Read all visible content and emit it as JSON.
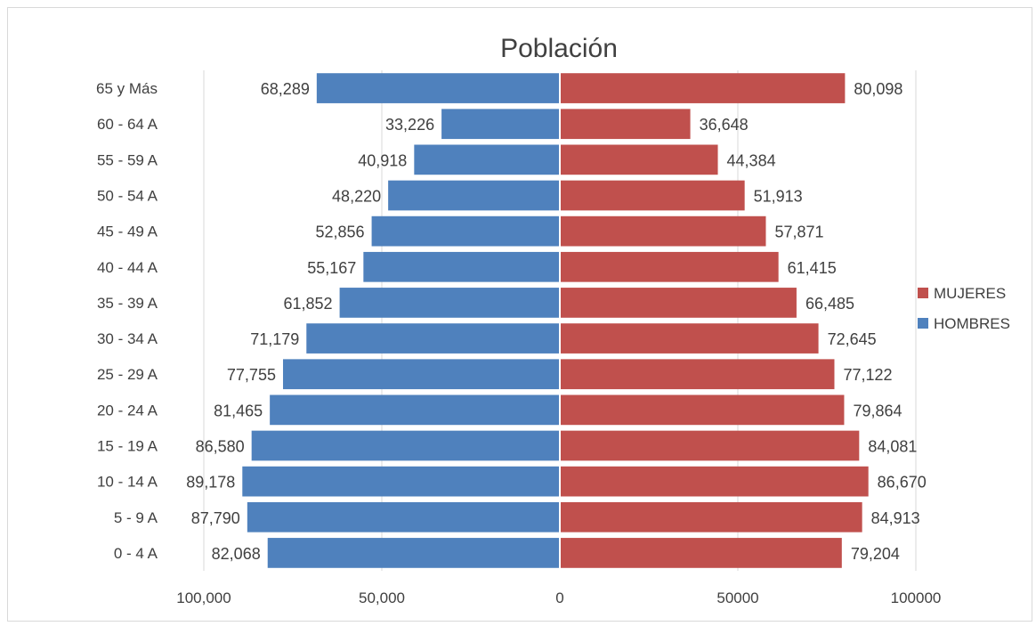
{
  "chart_data": {
    "type": "bar",
    "orientation": "horizontal",
    "title": "Población",
    "categories": [
      "0 - 4 A",
      "5 - 9 A",
      "10 - 14 A",
      "15 - 19 A",
      "20 - 24 A",
      "25 - 29 A",
      "30 - 34 A",
      "35 - 39 A",
      "40 - 44 A",
      "45 - 49 A",
      "50 - 54 A",
      "55 - 59 A",
      "60 - 64 A",
      "65 y Más"
    ],
    "series": [
      {
        "name": "HOMBRES",
        "color": "#4f81bd",
        "values": [
          82068,
          87790,
          89178,
          86580,
          81465,
          77755,
          71179,
          61852,
          55167,
          52856,
          48220,
          40918,
          33226,
          68289
        ],
        "labels": [
          "82,068",
          "87,790",
          "89,178",
          "86,580",
          "81,465",
          "77,755",
          "71,179",
          "61,852",
          "55,167",
          "52,856",
          "48,220",
          "40,918",
          "33,226",
          "68,289"
        ]
      },
      {
        "name": "MUJERES",
        "color": "#c0504d",
        "values": [
          79204,
          84913,
          86670,
          84081,
          79864,
          77122,
          72645,
          66485,
          61415,
          57871,
          51913,
          44384,
          36648,
          80098
        ],
        "labels": [
          "79,204",
          "84,913",
          "86,670",
          "84,081",
          "79,864",
          "77,122",
          "72,645",
          "66,485",
          "61,415",
          "57,871",
          "51,913",
          "44,384",
          "36,648",
          "80,098"
        ]
      }
    ],
    "xlim": [
      -100000,
      100000
    ],
    "x_ticks": [
      -100000,
      -50000,
      0,
      50000,
      100000
    ],
    "x_tick_labels": [
      "100,000",
      "50,000",
      "0",
      "50000",
      "100000"
    ],
    "legend": [
      "MUJERES",
      "HOMBRES"
    ],
    "legend_position": "right",
    "grid": "vertical"
  }
}
